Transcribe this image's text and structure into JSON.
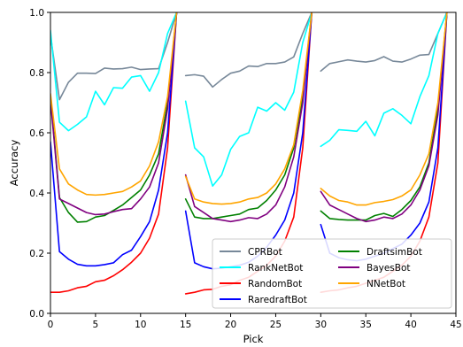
{
  "chart_data": {
    "type": "line",
    "xlabel": "Pick",
    "ylabel": "Accuracy",
    "xlim": [
      0,
      45
    ],
    "ylim": [
      0.0,
      1.0
    ],
    "xticks": [
      0,
      5,
      10,
      15,
      20,
      25,
      30,
      35,
      40,
      45
    ],
    "yticks": [
      0.0,
      0.2,
      0.4,
      0.6,
      0.8,
      1.0
    ],
    "xtick_labels": [
      "0",
      "5",
      "10",
      "15",
      "20",
      "25",
      "30",
      "35",
      "40",
      "45"
    ],
    "ytick_labels": [
      "0.0",
      "0.2",
      "0.4",
      "0.6",
      "0.8",
      "1.0"
    ],
    "grid": false,
    "legend_position": "lower-right",
    "legend_columns": 2,
    "segments": [
      [
        0,
        14
      ],
      [
        15,
        29
      ],
      [
        30,
        44
      ]
    ],
    "series": [
      {
        "name": "CPRBot",
        "color": "#778899",
        "values": [
          0.925,
          0.71,
          0.768,
          0.798,
          0.798,
          0.797,
          0.815,
          0.812,
          0.813,
          0.818,
          0.81,
          0.812,
          0.813,
          0.9,
          1.0,
          0.79,
          0.793,
          0.788,
          0.752,
          0.777,
          0.798,
          0.805,
          0.822,
          0.82,
          0.83,
          0.83,
          0.835,
          0.852,
          0.93,
          1.0,
          0.805,
          0.83,
          0.836,
          0.842,
          0.838,
          0.835,
          0.84,
          0.853,
          0.838,
          0.835,
          0.845,
          0.858,
          0.86,
          0.93,
          1.0
        ]
      },
      {
        "name": "RankNetBot",
        "color": "#00ffff",
        "values": [
          0.94,
          0.635,
          0.607,
          0.628,
          0.653,
          0.738,
          0.693,
          0.75,
          0.748,
          0.785,
          0.79,
          0.738,
          0.8,
          0.93,
          1.0,
          0.705,
          0.55,
          0.52,
          0.423,
          0.46,
          0.545,
          0.588,
          0.6,
          0.685,
          0.672,
          0.7,
          0.675,
          0.735,
          0.9,
          1.0,
          0.555,
          0.575,
          0.61,
          0.608,
          0.605,
          0.638,
          0.59,
          0.665,
          0.68,
          0.658,
          0.63,
          0.72,
          0.79,
          0.93,
          1.0
        ]
      },
      {
        "name": "RandomBot",
        "color": "#ff0000",
        "values": [
          0.07,
          0.07,
          0.075,
          0.085,
          0.09,
          0.105,
          0.11,
          0.125,
          0.145,
          0.17,
          0.2,
          0.25,
          0.33,
          0.55,
          1.0,
          0.065,
          0.07,
          0.078,
          0.08,
          0.09,
          0.095,
          0.11,
          0.12,
          0.14,
          0.16,
          0.19,
          0.24,
          0.32,
          0.55,
          1.0,
          0.07,
          0.075,
          0.078,
          0.085,
          0.09,
          0.1,
          0.11,
          0.12,
          0.14,
          0.16,
          0.19,
          0.24,
          0.32,
          0.5,
          1.0
        ]
      },
      {
        "name": "RaredraftBot",
        "color": "#0000ff",
        "values": [
          0.57,
          0.205,
          0.18,
          0.163,
          0.158,
          0.158,
          0.162,
          0.168,
          0.195,
          0.21,
          0.255,
          0.305,
          0.41,
          0.6,
          1.0,
          0.34,
          0.168,
          0.155,
          0.148,
          0.15,
          0.155,
          0.16,
          0.17,
          0.19,
          0.22,
          0.26,
          0.31,
          0.4,
          0.6,
          1.0,
          0.295,
          0.2,
          0.185,
          0.178,
          0.175,
          0.18,
          0.19,
          0.2,
          0.215,
          0.23,
          0.26,
          0.3,
          0.37,
          0.55,
          1.0
        ]
      },
      {
        "name": "DraftsimBot",
        "color": "#008000",
        "values": [
          0.72,
          0.385,
          0.335,
          0.303,
          0.305,
          0.32,
          0.325,
          0.342,
          0.36,
          0.385,
          0.41,
          0.46,
          0.53,
          0.7,
          1.0,
          0.38,
          0.32,
          0.315,
          0.315,
          0.32,
          0.325,
          0.33,
          0.345,
          0.35,
          0.375,
          0.41,
          0.46,
          0.55,
          0.72,
          1.0,
          0.34,
          0.315,
          0.312,
          0.31,
          0.31,
          0.31,
          0.325,
          0.332,
          0.322,
          0.345,
          0.375,
          0.42,
          0.5,
          0.68,
          1.0
        ]
      },
      {
        "name": "BayesBot",
        "color": "#800080",
        "values": [
          0.71,
          0.38,
          0.365,
          0.35,
          0.335,
          0.328,
          0.33,
          0.338,
          0.345,
          0.348,
          0.38,
          0.42,
          0.5,
          0.68,
          1.0,
          0.46,
          0.355,
          0.335,
          0.315,
          0.31,
          0.305,
          0.31,
          0.318,
          0.315,
          0.33,
          0.36,
          0.42,
          0.52,
          0.7,
          1.0,
          0.405,
          0.36,
          0.345,
          0.33,
          0.315,
          0.305,
          0.31,
          0.32,
          0.315,
          0.33,
          0.36,
          0.41,
          0.49,
          0.66,
          1.0
        ]
      },
      {
        "name": "NNetBot",
        "color": "#ffa500",
        "values": [
          0.73,
          0.48,
          0.43,
          0.41,
          0.395,
          0.393,
          0.395,
          0.4,
          0.405,
          0.42,
          0.44,
          0.49,
          0.57,
          0.72,
          1.0,
          0.455,
          0.38,
          0.37,
          0.365,
          0.363,
          0.365,
          0.37,
          0.38,
          0.385,
          0.4,
          0.43,
          0.48,
          0.56,
          0.74,
          1.0,
          0.415,
          0.39,
          0.375,
          0.37,
          0.36,
          0.36,
          0.368,
          0.372,
          0.378,
          0.39,
          0.41,
          0.46,
          0.53,
          0.7,
          1.0
        ]
      }
    ]
  }
}
